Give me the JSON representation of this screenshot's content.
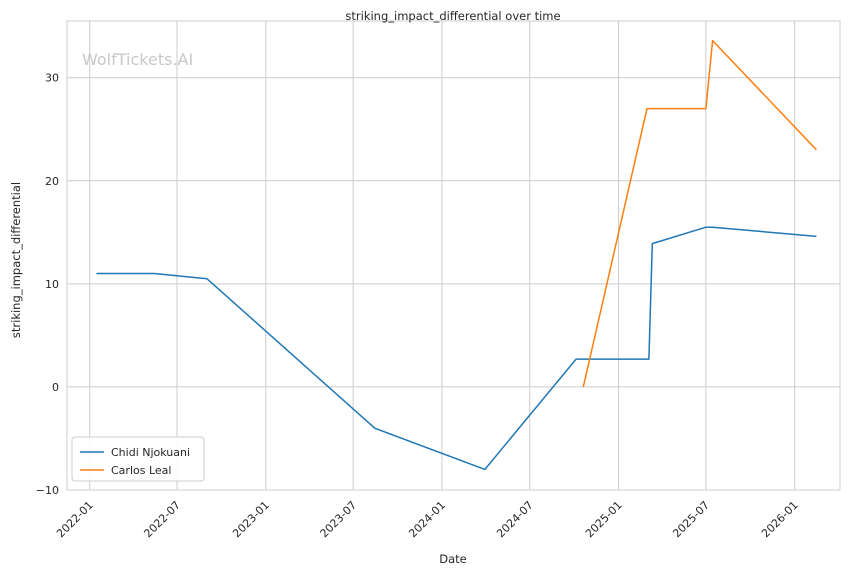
{
  "chart_data": {
    "type": "line",
    "title": "striking_impact_differential over time",
    "xlabel": "Date",
    "ylabel": "striking_impact_differential",
    "watermark": "WolfTickets.AI",
    "x_axis_kind": "date",
    "xlim": [
      "2021-11-15",
      "2026-04-05"
    ],
    "ylim": [
      -10,
      35.5
    ],
    "x_ticks": [
      "2022-01",
      "2022-07",
      "2023-01",
      "2023-07",
      "2024-01",
      "2024-07",
      "2025-01",
      "2025-07",
      "2026-01"
    ],
    "y_ticks": [
      -10,
      0,
      10,
      20,
      30
    ],
    "grid": true,
    "legend_position": "lower-left",
    "series": [
      {
        "name": "Chidi Njokuani",
        "color": "#1f77b4",
        "points": [
          {
            "x": "2022-01-15",
            "y": 11.0
          },
          {
            "x": "2022-05-15",
            "y": 11.0
          },
          {
            "x": "2022-09-01",
            "y": 10.5
          },
          {
            "x": "2023-08-15",
            "y": -4.0
          },
          {
            "x": "2024-03-30",
            "y": -8.0
          },
          {
            "x": "2024-10-05",
            "y": 2.7
          },
          {
            "x": "2025-03-05",
            "y": 2.7
          },
          {
            "x": "2025-03-12",
            "y": 13.9
          },
          {
            "x": "2025-07-01",
            "y": 15.5
          },
          {
            "x": "2025-07-15",
            "y": 15.5
          },
          {
            "x": "2026-02-15",
            "y": 14.6
          }
        ]
      },
      {
        "name": "Carlos Leal",
        "color": "#ff7f0e",
        "points": [
          {
            "x": "2024-10-20",
            "y": 0.0
          },
          {
            "x": "2025-03-01",
            "y": 27.0
          },
          {
            "x": "2025-07-01",
            "y": 27.0
          },
          {
            "x": "2025-07-15",
            "y": 33.6
          },
          {
            "x": "2026-02-15",
            "y": 23.0
          }
        ]
      }
    ]
  }
}
